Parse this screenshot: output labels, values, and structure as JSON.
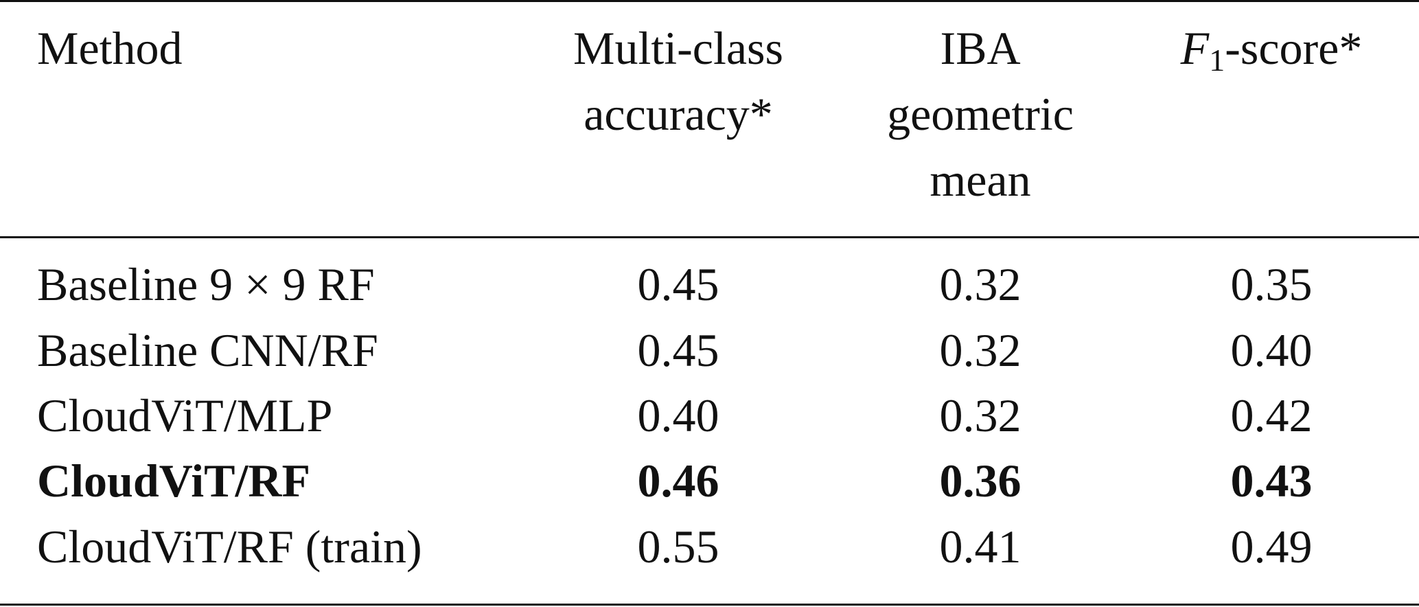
{
  "table": {
    "headers": {
      "method": "Method",
      "accuracy": [
        "Multi-class",
        "accuracy*"
      ],
      "iba": [
        "IBA",
        "geometric",
        "mean"
      ],
      "f1": {
        "symbol": "F",
        "subscript": "1",
        "rest": "-score*"
      }
    },
    "rows": [
      {
        "method": "Baseline 9 × 9 RF",
        "accuracy": "0.45",
        "iba": "0.32",
        "f1": "0.35",
        "bold": false
      },
      {
        "method": "Baseline CNN/RF",
        "accuracy": "0.45",
        "iba": "0.32",
        "f1": "0.40",
        "bold": false
      },
      {
        "method": "CloudViT/MLP",
        "accuracy": "0.40",
        "iba": "0.32",
        "f1": "0.42",
        "bold": false
      },
      {
        "method": "CloudViT/RF",
        "accuracy": "0.46",
        "iba": "0.36",
        "f1": "0.43",
        "bold": true
      },
      {
        "method": "CloudViT/RF (train)",
        "accuracy": "0.55",
        "iba": "0.41",
        "f1": "0.49",
        "bold": false
      }
    ]
  }
}
